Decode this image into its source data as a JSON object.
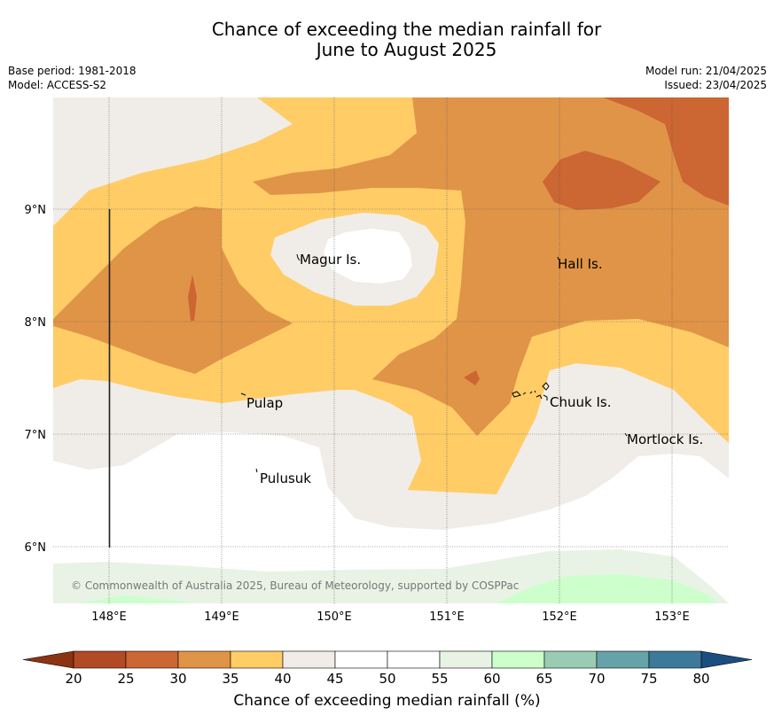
{
  "title": {
    "line1": "Chance of exceeding the median rainfall for",
    "line2": "June to August 2025"
  },
  "meta": {
    "base_period": "Base period: 1981-2018",
    "model": "Model: ACCESS-S2",
    "model_run": "Model run: 21/04/2025",
    "issued": "Issued: 23/04/2025"
  },
  "map": {
    "lat_labels": [
      "9°N",
      "8°N",
      "7°N",
      "6°N"
    ],
    "lon_labels": [
      "148°E",
      "149°E",
      "150°E",
      "151°E",
      "152°E",
      "153°E"
    ],
    "places": [
      {
        "name": "Magur Is."
      },
      {
        "name": "Hall Is."
      },
      {
        "name": "Pulap"
      },
      {
        "name": "Chuuk Is."
      },
      {
        "name": "Mortlock Is."
      },
      {
        "name": "Pulusuk"
      }
    ],
    "copyright": "© Commonwealth of Australia 2025, Bureau of Meteorology, supported by COSPPac"
  },
  "colorbar": {
    "title": "Chance of exceeding median rainfall (%)",
    "ticks": [
      "20",
      "25",
      "30",
      "35",
      "40",
      "45",
      "50",
      "55",
      "60",
      "65",
      "70",
      "75",
      "80"
    ],
    "colors": [
      "#b24a26",
      "#cc6633",
      "#e09447",
      "#ffcc66",
      "#f0ede8",
      "#ffffff",
      "#ffffff",
      "#e8f3e6",
      "#ccffcc",
      "#99ccb3",
      "#66a3a8",
      "#3d7a99"
    ],
    "under_color": "#8c3314",
    "over_color": "#1a4d80"
  }
}
